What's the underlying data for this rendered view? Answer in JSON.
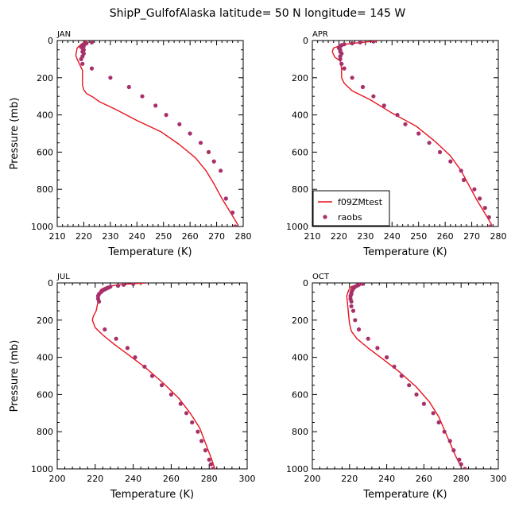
{
  "figure_title": "ShipP_GulfofAlaska  latitude= 50 N longitude= 145 W",
  "colors": {
    "model_line": "#e8141e",
    "obs_dot": "#a8306a"
  },
  "chart_data": [
    {
      "type": "line",
      "panel": "JAN",
      "xlabel": "Temperature (K)",
      "ylabel": "Pressure (mb)",
      "xlim": [
        210,
        280
      ],
      "ylim": [
        1000,
        0
      ],
      "xticks": [
        210,
        220,
        230,
        240,
        250,
        260,
        270,
        280
      ],
      "yticks": [
        0,
        200,
        400,
        600,
        800,
        1000
      ],
      "grid": false,
      "legend": null,
      "series": [
        {
          "name": "f09ZMtest",
          "style": "line",
          "x": [
            221,
            219,
            217.5,
            217,
            217.5,
            218.5,
            219.5,
            219.5,
            219.5,
            220,
            221,
            223,
            226,
            232,
            240,
            249,
            256,
            262,
            266,
            269,
            272,
            275,
            278
          ],
          "y": [
            0,
            20,
            40,
            80,
            100,
            130,
            160,
            200,
            240,
            265,
            285,
            300,
            330,
            370,
            430,
            490,
            560,
            630,
            700,
            770,
            850,
            920,
            990
          ]
        },
        {
          "name": "raobs",
          "style": "points",
          "x": [
            223,
            221,
            220,
            219.5,
            220,
            219,
            219.5,
            220,
            219.5,
            220,
            219.5,
            219,
            219.5,
            223,
            230,
            237,
            242,
            247,
            251,
            256,
            260,
            264,
            267,
            269,
            271.5,
            273.5,
            276,
            277
          ],
          "y": [
            10,
            15,
            20,
            25,
            30,
            35,
            40,
            50,
            60,
            70,
            85,
            100,
            125,
            150,
            200,
            250,
            300,
            350,
            400,
            450,
            500,
            550,
            600,
            650,
            700,
            850,
            925,
            1000
          ]
        }
      ]
    },
    {
      "type": "line",
      "panel": "APR",
      "xlabel": "Temperature (K)",
      "ylabel": "",
      "xlim": [
        210,
        280
      ],
      "ylim": [
        1000,
        0
      ],
      "xticks": [
        210,
        220,
        230,
        240,
        250,
        260,
        270,
        280
      ],
      "yticks": [
        0,
        200,
        400,
        600,
        800,
        1000
      ],
      "grid": false,
      "legend": "bottom-left",
      "series": [
        {
          "name": "f09ZMtest",
          "style": "line",
          "x": [
            235,
            229,
            222,
            218,
            217.5,
            218.5,
            220.5,
            221,
            221,
            222,
            225,
            232,
            240,
            249,
            256,
            262,
            266,
            269,
            272,
            275,
            277.5
          ],
          "y": [
            0,
            10,
            20,
            40,
            60,
            90,
            110,
            150,
            200,
            230,
            270,
            320,
            390,
            460,
            540,
            620,
            700,
            780,
            860,
            930,
            990
          ]
        },
        {
          "name": "raobs",
          "style": "points",
          "x": [
            233,
            228,
            225,
            222,
            221,
            220.5,
            220,
            220.5,
            220.5,
            221,
            220.5,
            220.5,
            221,
            222,
            225,
            229,
            233,
            237,
            242,
            245,
            250,
            254,
            258,
            262,
            266,
            267,
            271,
            273,
            275,
            276.5,
            277
          ],
          "y": [
            5,
            10,
            15,
            20,
            25,
            30,
            40,
            50,
            60,
            70,
            85,
            100,
            125,
            150,
            200,
            250,
            300,
            350,
            400,
            450,
            500,
            550,
            600,
            650,
            700,
            750,
            800,
            850,
            900,
            950,
            1000
          ]
        }
      ]
    },
    {
      "type": "line",
      "panel": "JUL",
      "xlabel": "Temperature (K)",
      "ylabel": "Pressure (mb)",
      "xlim": [
        200,
        300
      ],
      "ylim": [
        1000,
        0
      ],
      "xticks": [
        200,
        220,
        240,
        260,
        280,
        300
      ],
      "yticks": [
        0,
        200,
        400,
        600,
        800,
        1000
      ],
      "grid": false,
      "legend": null,
      "series": [
        {
          "name": "f09ZMtest",
          "style": "line",
          "x": [
            247,
            238,
            231,
            226,
            223,
            221.5,
            221.5,
            220.5,
            219,
            218.5,
            220,
            224,
            230,
            238,
            247,
            256,
            264,
            270,
            275,
            278,
            281,
            283
          ],
          "y": [
            0,
            5,
            12,
            20,
            35,
            60,
            100,
            150,
            180,
            200,
            240,
            280,
            330,
            390,
            460,
            540,
            620,
            700,
            780,
            860,
            940,
            1000
          ]
        },
        {
          "name": "raobs",
          "style": "points",
          "x": [
            240,
            235,
            232,
            228,
            227,
            226,
            225,
            224,
            223,
            222,
            221.5,
            221.5,
            222,
            225,
            231,
            237,
            241,
            246,
            250,
            255,
            260,
            265,
            268,
            271,
            274,
            276,
            278,
            280,
            281,
            282,
            282.5,
            283
          ],
          "y": [
            5,
            10,
            15,
            20,
            25,
            30,
            35,
            40,
            50,
            60,
            70,
            85,
            100,
            250,
            300,
            350,
            400,
            450,
            500,
            550,
            600,
            650,
            700,
            750,
            800,
            850,
            900,
            950,
            975,
            1000,
            1010,
            1015
          ]
        }
      ]
    },
    {
      "type": "line",
      "panel": "OCT",
      "xlabel": "Temperature (K)",
      "ylabel": "",
      "xlim": [
        200,
        300
      ],
      "ylim": [
        1000,
        0
      ],
      "xticks": [
        200,
        220,
        240,
        260,
        280,
        300
      ],
      "yticks": [
        0,
        200,
        400,
        600,
        800,
        1000
      ],
      "grid": false,
      "legend": null,
      "series": [
        {
          "name": "f09ZMtest",
          "style": "line",
          "x": [
            228,
            224,
            221,
            219.5,
            218.5,
            219,
            219.5,
            220,
            221,
            224,
            230,
            238,
            247,
            256,
            263,
            268,
            271,
            274,
            277,
            280
          ],
          "y": [
            0,
            10,
            20,
            40,
            70,
            120,
            170,
            220,
            260,
            300,
            350,
            410,
            480,
            560,
            640,
            720,
            790,
            860,
            930,
            990
          ]
        },
        {
          "name": "raobs",
          "style": "points",
          "x": [
            227,
            225,
            224,
            223,
            222.5,
            222,
            221.5,
            221,
            221,
            220.5,
            220.5,
            221,
            221,
            222,
            223,
            225,
            230,
            235,
            240,
            244,
            248,
            252,
            256,
            260,
            265,
            268,
            271,
            274,
            276,
            279,
            280,
            282
          ],
          "y": [
            5,
            10,
            15,
            20,
            25,
            30,
            40,
            50,
            60,
            70,
            85,
            100,
            125,
            150,
            200,
            250,
            300,
            350,
            400,
            450,
            500,
            550,
            600,
            650,
            700,
            750,
            800,
            850,
            900,
            950,
            975,
            1000
          ]
        }
      ]
    }
  ]
}
